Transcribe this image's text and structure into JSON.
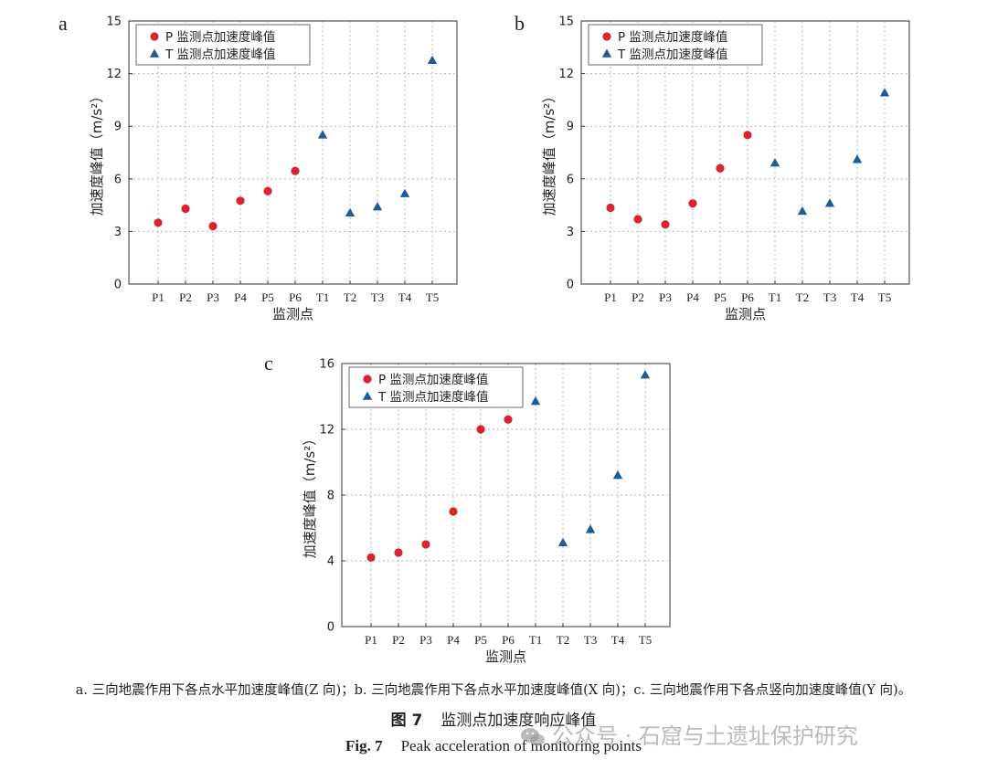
{
  "colors": {
    "p_series": "#d9242f",
    "t_series": "#1f5b99"
  },
  "chart_data": [
    {
      "panel": "a",
      "type": "scatter",
      "categories": [
        "P1",
        "P2",
        "P3",
        "P4",
        "P5",
        "P6",
        "T1",
        "T2",
        "T3",
        "T4",
        "T5"
      ],
      "xlabel": "监测点",
      "ylabel": "加速度峰值（m/s²）",
      "ylim": [
        0,
        15
      ],
      "yticks": [
        0,
        3,
        6,
        9,
        12,
        15
      ],
      "grid": true,
      "legend_position": "top-left",
      "series": [
        {
          "name": "P 监测点加速度峰值",
          "marker": "circle",
          "points": [
            [
              "P1",
              3.5
            ],
            [
              "P2",
              4.3
            ],
            [
              "P3",
              3.3
            ],
            [
              "P4",
              4.75
            ],
            [
              "P5",
              5.3
            ],
            [
              "P6",
              6.45
            ]
          ]
        },
        {
          "name": "T 监测点加速度峰值",
          "marker": "triangle",
          "points": [
            [
              "T1",
              8.5
            ],
            [
              "T2",
              4.05
            ],
            [
              "T3",
              4.4
            ],
            [
              "T4",
              5.15
            ],
            [
              "T5",
              12.75
            ]
          ]
        }
      ]
    },
    {
      "panel": "b",
      "type": "scatter",
      "categories": [
        "P1",
        "P2",
        "P3",
        "P4",
        "P5",
        "P6",
        "T1",
        "T2",
        "T3",
        "T4",
        "T5"
      ],
      "xlabel": "监测点",
      "ylabel": "加速度峰值（m/s²）",
      "ylim": [
        0,
        15
      ],
      "yticks": [
        0,
        3,
        6,
        9,
        12,
        15
      ],
      "grid": true,
      "legend_position": "top-left",
      "series": [
        {
          "name": "P 监测点加速度峰值",
          "marker": "circle",
          "points": [
            [
              "P1",
              4.35
            ],
            [
              "P2",
              3.7
            ],
            [
              "P3",
              3.4
            ],
            [
              "P4",
              4.6
            ],
            [
              "P5",
              6.6
            ],
            [
              "P6",
              8.5
            ]
          ]
        },
        {
          "name": "T 监测点加速度峰值",
          "marker": "triangle",
          "points": [
            [
              "T1",
              6.9
            ],
            [
              "T2",
              4.15
            ],
            [
              "T3",
              4.6
            ],
            [
              "T4",
              7.1
            ],
            [
              "T5",
              10.9
            ]
          ]
        }
      ]
    },
    {
      "panel": "c",
      "type": "scatter",
      "categories": [
        "P1",
        "P2",
        "P3",
        "P4",
        "P5",
        "P6",
        "T1",
        "T2",
        "T3",
        "T4",
        "T5"
      ],
      "xlabel": "监测点",
      "ylabel": "加速度峰值（m/s²）",
      "ylim": [
        0,
        16
      ],
      "yticks": [
        0,
        4,
        8,
        12,
        16
      ],
      "grid": true,
      "legend_position": "top-left",
      "series": [
        {
          "name": "P 监测点加速度峰值",
          "marker": "circle",
          "points": [
            [
              "P1",
              4.2
            ],
            [
              "P2",
              4.5
            ],
            [
              "P3",
              5.0
            ],
            [
              "P4",
              7.0
            ],
            [
              "P5",
              12.0
            ],
            [
              "P6",
              12.6
            ]
          ]
        },
        {
          "name": "T 监测点加速度峰值",
          "marker": "triangle",
          "points": [
            [
              "T1",
              13.7
            ],
            [
              "T2",
              5.1
            ],
            [
              "T3",
              5.9
            ],
            [
              "T4",
              9.2
            ],
            [
              "T5",
              15.3
            ]
          ]
        }
      ]
    }
  ],
  "captions": {
    "subtitle": "a. 三向地震作用下各点水平加速度峰值(Z 向)；b. 三向地震作用下各点水平加速度峰值(X 向)；c. 三向地震作用下各点竖向加速度峰值(Y 向)。",
    "fig_cn_label": "图 7",
    "fig_cn_title": "监测点加速度响应峰值",
    "fig_en_label": "Fig. 7",
    "fig_en_title": "Peak acceleration of monitoring points"
  },
  "watermark": {
    "icon": "wechat-icon",
    "text": "公众号 · 石窟与土遗址保护研究"
  }
}
